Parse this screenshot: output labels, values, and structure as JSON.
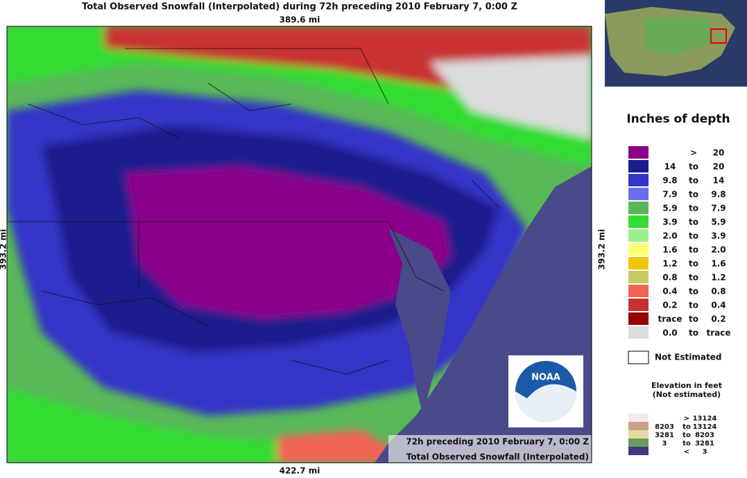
{
  "title": "Total Observed Snowfall (Interpolated) during 72h preceding 2010 February 7, 0:00 Z",
  "map": {
    "top_distance": "389.6 mi",
    "bottom_distance": "422.7 mi",
    "left_distance": "393.2 mi",
    "right_distance": "393.2 mi",
    "caption": [
      "72h preceding 2010 February 7, 0:00 Z",
      "Total Observed Snowfall (Interpolated)"
    ],
    "logo": "NOAA"
  },
  "legend": {
    "title": "Inches of depth",
    "rows": [
      {
        "color": "#8b008b",
        "sep": ">",
        "high": "20"
      },
      {
        "color": "#1c1c8e",
        "low": "14",
        "sep": "to",
        "high": "20"
      },
      {
        "color": "#3434c8",
        "low": "9.8",
        "sep": "to",
        "high": "14"
      },
      {
        "color": "#6c6cf0",
        "low": "7.9",
        "sep": "to",
        "high": "9.8"
      },
      {
        "color": "#58b858",
        "low": "5.9",
        "sep": "to",
        "high": "7.9"
      },
      {
        "color": "#33dd33",
        "low": "3.9",
        "sep": "to",
        "high": "5.9"
      },
      {
        "color": "#9cf08c",
        "low": "2.0",
        "sep": "to",
        "high": "3.9"
      },
      {
        "color": "#ffff78",
        "low": "1.6",
        "sep": "to",
        "high": "2.0"
      },
      {
        "color": "#eec800",
        "low": "1.2",
        "sep": "to",
        "high": "1.6"
      },
      {
        "color": "#c8c864",
        "low": "0.8",
        "sep": "to",
        "high": "1.2"
      },
      {
        "color": "#f06452",
        "low": "0.4",
        "sep": "to",
        "high": "0.8"
      },
      {
        "color": "#c83030",
        "low": "0.2",
        "sep": "to",
        "high": "0.4"
      },
      {
        "color": "#960000",
        "low": "trace",
        "sep": "to",
        "high": "0.2"
      },
      {
        "color": "#dcdcdc",
        "low": "0.0",
        "sep": "to",
        "high": "trace"
      }
    ],
    "not_estimated": "Not Estimated",
    "elevation_title": [
      "Elevation in feet",
      "(Not estimated)"
    ],
    "elevation_rows": [
      {
        "color": "#f4e8f2",
        "sep": ">",
        "high": "13124"
      },
      {
        "color": "#c8a088",
        "low": "8203",
        "sep": "to",
        "high": "13124"
      },
      {
        "color": "#e2dca2",
        "low": "3281",
        "sep": "to",
        "high": "8203"
      },
      {
        "color": "#6a9a60",
        "low": "3",
        "sep": "to",
        "high": "3281"
      },
      {
        "color": "#3c3c7c",
        "sep": "<",
        "high": "3"
      }
    ]
  }
}
